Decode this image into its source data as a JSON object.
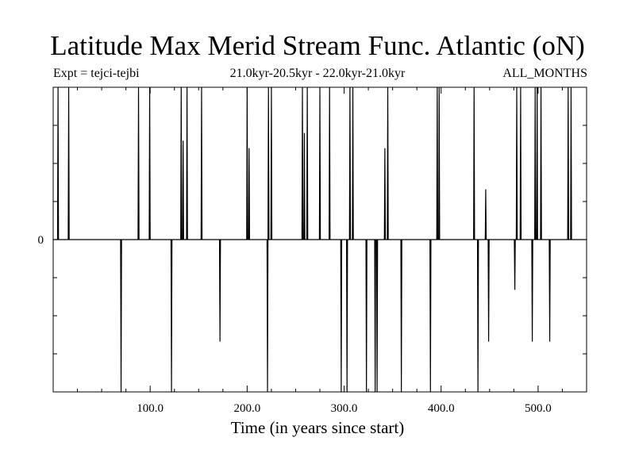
{
  "header": {
    "title": "Latitude Max Merid Stream Func. Atlantic (oN)",
    "expt": "Expt = tejci-tejbi",
    "period": "21.0kyr-20.5kyr - 22.0kyr-21.0kyr",
    "months": "ALL_MONTHS"
  },
  "chart_data": {
    "type": "line",
    "xlabel": "Time (in years since start)",
    "ylabel": "",
    "xlim": [
      0,
      550
    ],
    "ylim": [
      -1,
      1
    ],
    "x_ticks": [
      100,
      200,
      300,
      400,
      500
    ],
    "x_tick_labels": [
      "100.0",
      "200.0",
      "300.0",
      "400.0",
      "500.0"
    ],
    "y_ticks": [
      0
    ],
    "y_tick_labels": [
      "0"
    ],
    "grid": false,
    "series": [
      {
        "step_years": 0.5,
        "events": [
          {
            "x": 5,
            "y": 1
          },
          {
            "x": 16,
            "y": 1
          },
          {
            "x": 70,
            "y": -1
          },
          {
            "x": 88,
            "y": 1
          },
          {
            "x": 99.5,
            "y": 1
          },
          {
            "x": 122,
            "y": -1
          },
          {
            "x": 132,
            "y": 1
          },
          {
            "x": 134,
            "y": 0.65
          },
          {
            "x": 138,
            "y": 1
          },
          {
            "x": 153,
            "y": 1
          },
          {
            "x": 172,
            "y": -0.67
          },
          {
            "x": 200,
            "y": 1
          },
          {
            "x": 202,
            "y": 0.6
          },
          {
            "x": 221,
            "y": -1
          },
          {
            "x": 222,
            "y": 1
          },
          {
            "x": 225,
            "y": 1
          },
          {
            "x": 257,
            "y": 1
          },
          {
            "x": 259,
            "y": 0.7
          },
          {
            "x": 262,
            "y": 1
          },
          {
            "x": 275,
            "y": 1
          },
          {
            "x": 285,
            "y": 1
          },
          {
            "x": 297,
            "y": -1
          },
          {
            "x": 303,
            "y": -1
          },
          {
            "x": 306,
            "y": 1
          },
          {
            "x": 309,
            "y": 1
          },
          {
            "x": 323,
            "y": -1
          },
          {
            "x": 332,
            "y": -1
          },
          {
            "x": 334,
            "y": -1
          },
          {
            "x": 342,
            "y": 0.6
          },
          {
            "x": 345,
            "y": 1
          },
          {
            "x": 359,
            "y": -1
          },
          {
            "x": 389,
            "y": -1
          },
          {
            "x": 396,
            "y": 1
          },
          {
            "x": 398,
            "y": 1
          },
          {
            "x": 434,
            "y": 1
          },
          {
            "x": 438,
            "y": -1
          },
          {
            "x": 446,
            "y": 0.33
          },
          {
            "x": 449,
            "y": -0.67
          },
          {
            "x": 476,
            "y": -0.33
          },
          {
            "x": 478,
            "y": 1
          },
          {
            "x": 482,
            "y": 1
          },
          {
            "x": 494,
            "y": -0.67
          },
          {
            "x": 497,
            "y": 1
          },
          {
            "x": 499,
            "y": 1
          },
          {
            "x": 503,
            "y": 1
          },
          {
            "x": 512,
            "y": -0.67
          },
          {
            "x": 531,
            "y": 1
          },
          {
            "x": 534,
            "y": 1
          }
        ]
      }
    ]
  }
}
